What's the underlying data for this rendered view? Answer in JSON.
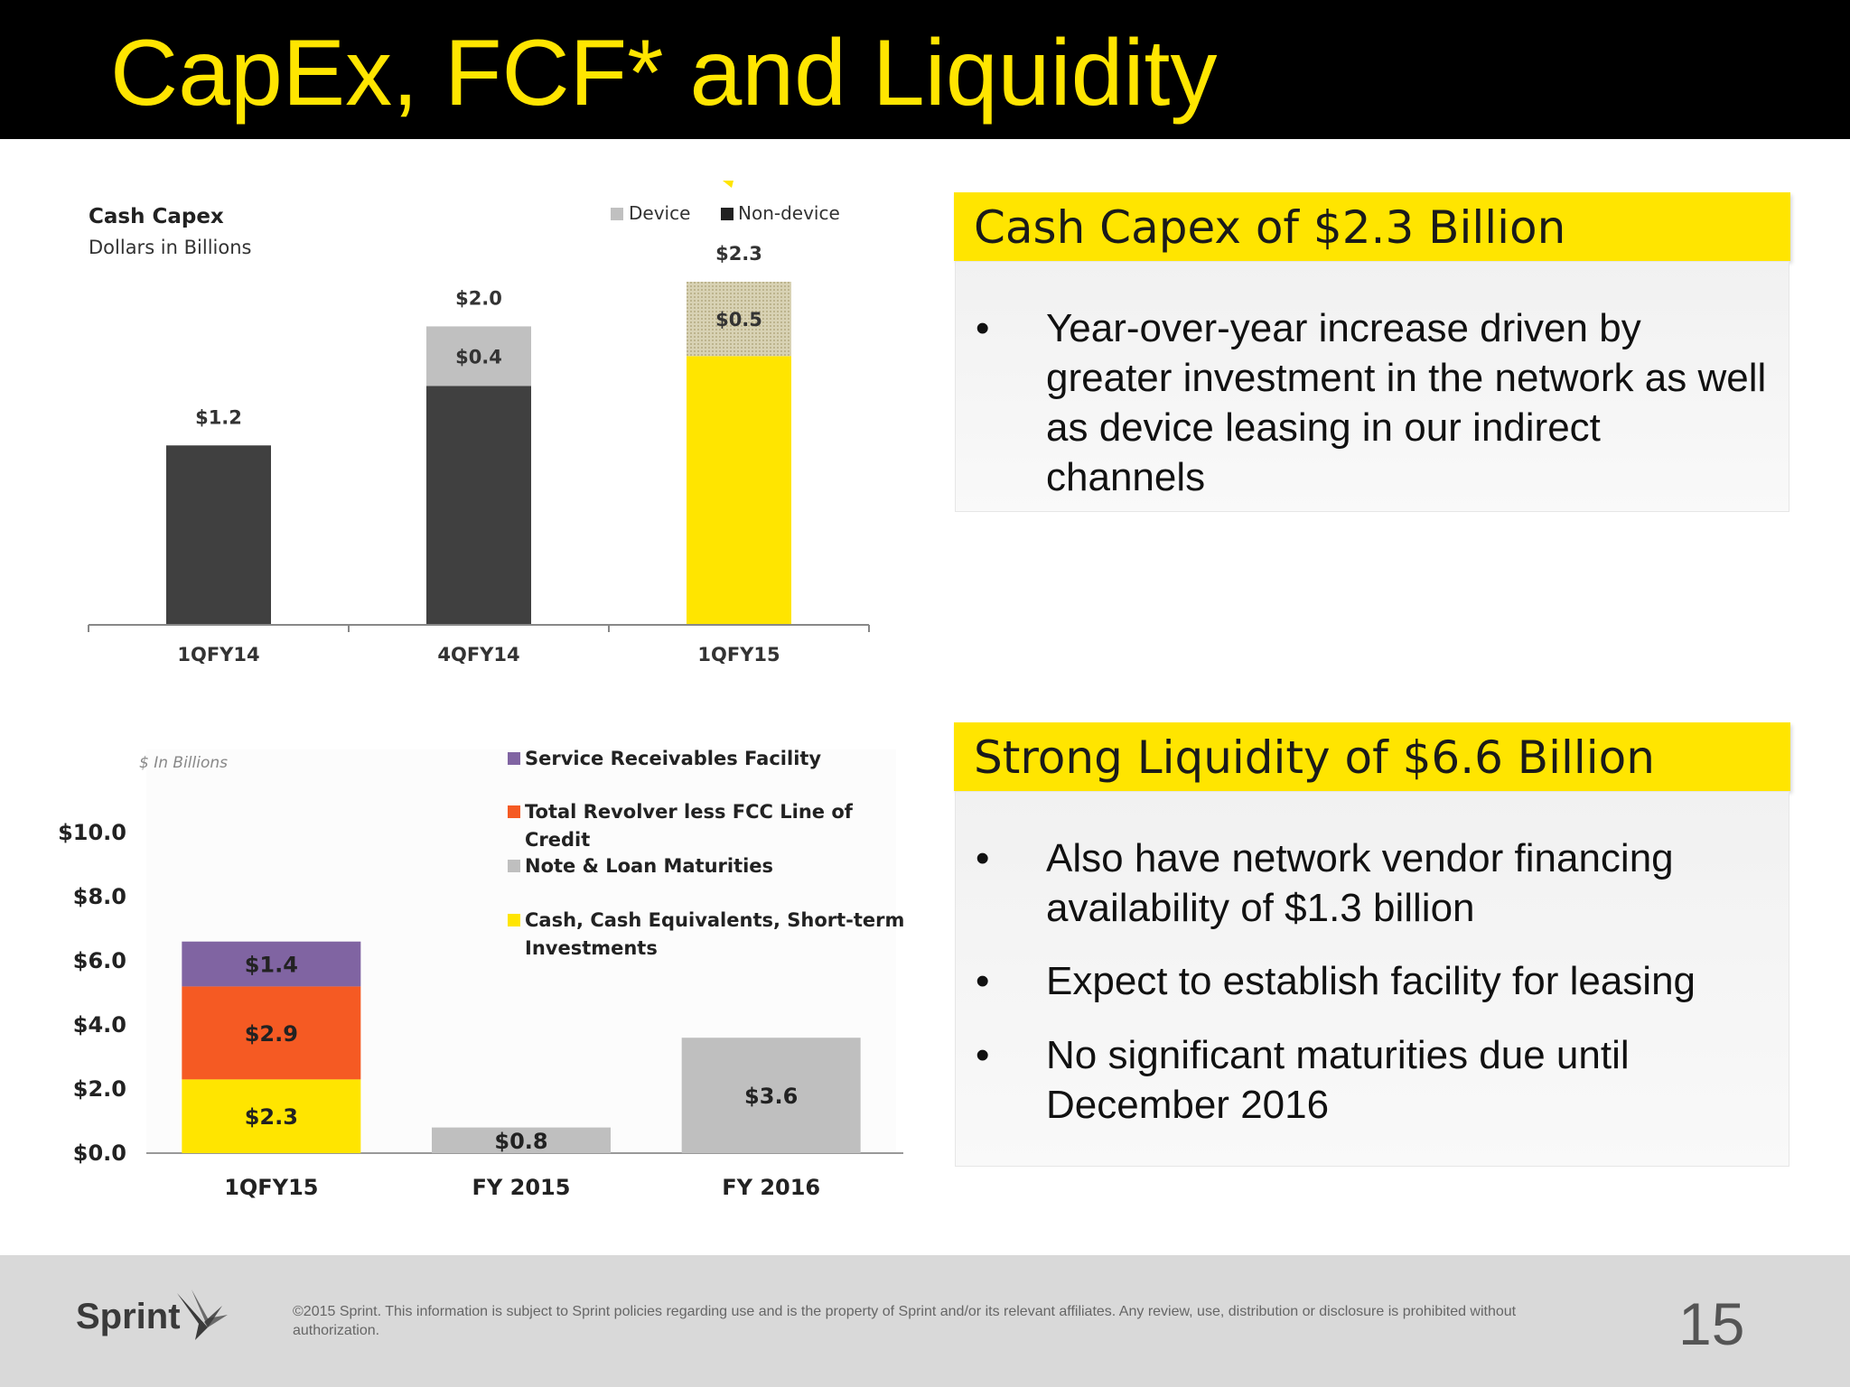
{
  "slide": {
    "title": "CapEx, FCF* and Liquidity",
    "page_number": "15",
    "legal": "©2015 Sprint. This information is subject to Sprint policies regarding use and is the property of Sprint and/or its relevant affiliates. Any review, use, distribution or disclosure is prohibited without authorization.",
    "logo_text": "Sprint"
  },
  "colors": {
    "accent_yellow": "#FFE500",
    "dark_bar": "#404040",
    "device_gray": "#C0C0C0",
    "service_purple": "#8064A2",
    "revolver_orange": "#F55A23",
    "note_gray": "#BFBFBF"
  },
  "panels": {
    "capex": {
      "heading": "Cash Capex of $2.3 Billion",
      "bullets": [
        "Year-over-year increase driven by greater investment in the network as well as device leasing in our indirect channels"
      ]
    },
    "liquidity": {
      "heading": "Strong Liquidity of $6.6 Billion",
      "bullets": [
        "Also have network vendor financing availability of $1.3 billion",
        "Expect to establish facility for leasing",
        "No significant maturities due until December 2016"
      ]
    }
  },
  "chart_data": [
    {
      "type": "bar",
      "title": "Cash Capex",
      "subtitle": "Dollars in Billions",
      "stacked": true,
      "categories": [
        "1QFY14",
        "4QFY14",
        "1QFY15"
      ],
      "series": [
        {
          "name": "Non-device",
          "values": [
            1.2,
            1.6,
            1.8
          ],
          "colors": [
            "#404040",
            "#404040",
            "#FFE500"
          ]
        },
        {
          "name": "Device",
          "values": [
            0,
            0.4,
            0.5
          ],
          "labels": [
            "",
            "$0.4",
            "$0.5"
          ],
          "colors": [
            "#C0C0C0",
            "#C0C0C0",
            "#C9C0A0"
          ]
        }
      ],
      "totals": [
        "$1.2",
        "$2.0",
        "$2.3"
      ],
      "total_values": [
        1.2,
        2.0,
        2.3
      ],
      "legend": [
        "Device",
        "Non-device"
      ],
      "ylim": [
        0,
        2.3
      ]
    },
    {
      "type": "bar",
      "title": "",
      "subtitle": "$ In Billions",
      "stacked": true,
      "categories": [
        "1QFY15",
        "FY 2015",
        "FY 2016"
      ],
      "yticks": [
        "$0.0",
        "$2.0",
        "$4.0",
        "$6.0",
        "$8.0",
        "$10.0"
      ],
      "ylim": [
        0,
        10
      ],
      "stacks": [
        [
          {
            "series": "Cash, Cash Equivalents, Short-term Investments",
            "value": 2.3,
            "label": "$2.3",
            "color": "#FFE500"
          },
          {
            "series": "Total Revolver less FCC Line of Credit",
            "value": 2.9,
            "label": "$2.9",
            "color": "#F55A23"
          },
          {
            "series": "Service Receivables Facility",
            "value": 1.4,
            "label": "$1.4",
            "color": "#8064A2"
          }
        ],
        [
          {
            "series": "Note & Loan Maturities",
            "value": 0.8,
            "label": "$0.8",
            "color": "#BFBFBF"
          }
        ],
        [
          {
            "series": "Note & Loan Maturities",
            "value": 3.6,
            "label": "$3.6",
            "color": "#BFBFBF"
          }
        ]
      ],
      "legend": [
        {
          "lines": [
            "Service Receivables Facility"
          ],
          "color": "#8064A2"
        },
        {
          "lines": [
            "Total Revolver less FCC Line of",
            "Credit"
          ],
          "color": "#F55A23"
        },
        {
          "lines": [
            "Note & Loan Maturities"
          ],
          "color": "#BFBFBF"
        },
        {
          "lines": [
            "Cash, Cash Equivalents, Short-term",
            "Investments"
          ],
          "color": "#FFE500"
        }
      ]
    }
  ]
}
